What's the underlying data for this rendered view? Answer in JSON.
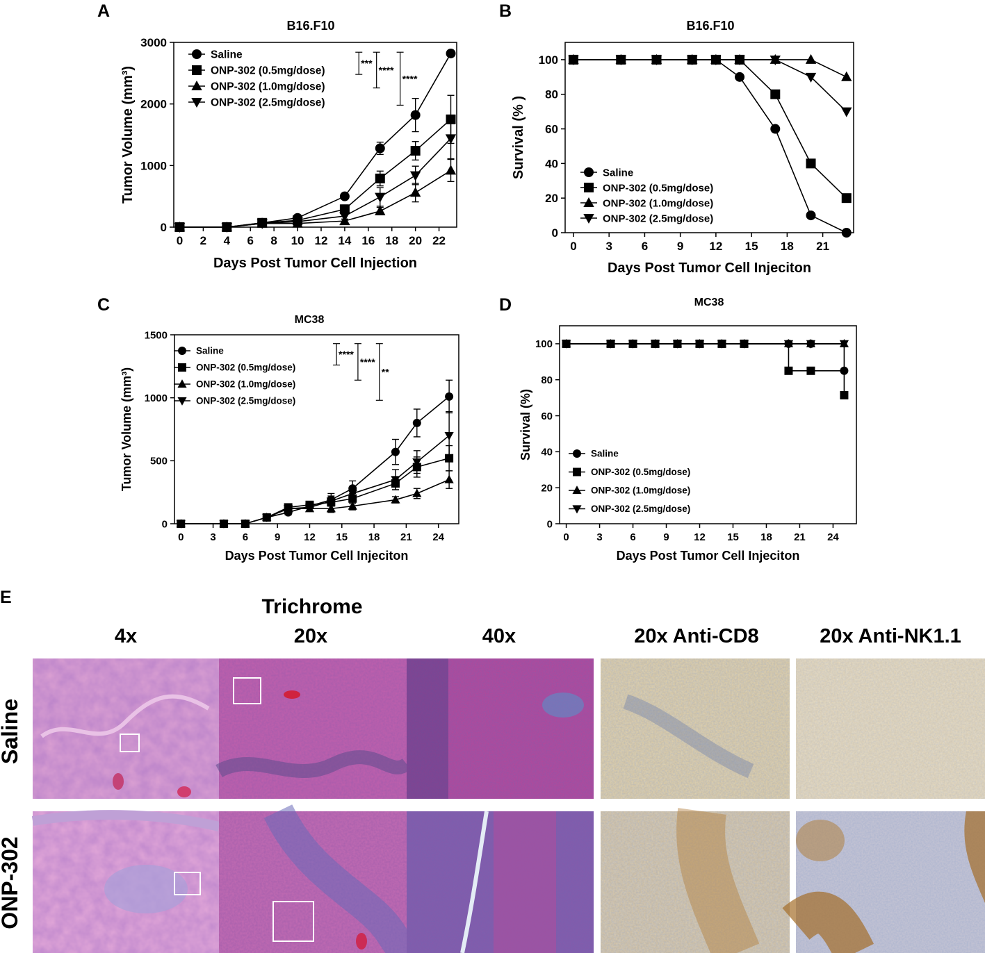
{
  "panel_letters": [
    "A",
    "B",
    "C",
    "D",
    "E"
  ],
  "legend_series": [
    "Saline",
    "ONP-302 (0.5mg/dose)",
    "ONP-302 (1.0mg/dose)",
    "ONP-302 (2.5mg/dose)"
  ],
  "marker_symbols": {
    "Saline": "circle",
    "ONP-302 (0.5mg/dose)": "square",
    "ONP-302 (1.0mg/dose)": "triangle-up",
    "ONP-302 (2.5mg/dose)": "triangle-down"
  },
  "chart_data": [
    {
      "panel": "A",
      "type": "line",
      "title": "B16.F10",
      "xlabel": "Days Post Tumor Cell Injection",
      "ylabel": "Tumor Volume (mm³)",
      "xlim": [
        -0.5,
        23.5
      ],
      "ylim": [
        0,
        3000
      ],
      "xticks": [
        0,
        2,
        4,
        6,
        8,
        10,
        12,
        14,
        16,
        18,
        20,
        22
      ],
      "yticks": [
        0,
        1000,
        2000,
        3000
      ],
      "legend_position": "top-left",
      "series": [
        {
          "name": "Saline",
          "marker": "circle",
          "x": [
            0,
            4,
            7,
            10,
            14,
            17,
            20,
            23
          ],
          "y": [
            0,
            0,
            70,
            150,
            500,
            1280,
            1820,
            2820
          ],
          "err": [
            0,
            0,
            20,
            30,
            40,
            100,
            270,
            0
          ]
        },
        {
          "name": "ONP-302 (0.5mg/dose)",
          "marker": "square",
          "x": [
            0,
            4,
            7,
            10,
            14,
            17,
            20,
            23
          ],
          "y": [
            0,
            0,
            70,
            110,
            290,
            790,
            1240,
            1750
          ],
          "err": [
            0,
            0,
            20,
            30,
            70,
            120,
            150,
            390
          ]
        },
        {
          "name": "ONP-302 (1.0mg/dose)",
          "marker": "triangle-up",
          "x": [
            0,
            4,
            7,
            10,
            14,
            17,
            20,
            23
          ],
          "y": [
            0,
            0,
            60,
            60,
            100,
            260,
            560,
            920
          ],
          "err": [
            0,
            0,
            20,
            20,
            30,
            60,
            150,
            180
          ]
        },
        {
          "name": "ONP-302 (2.5mg/dose)",
          "marker": "triangle-down",
          "x": [
            0,
            4,
            7,
            10,
            14,
            17,
            20,
            23
          ],
          "y": [
            0,
            0,
            60,
            90,
            180,
            490,
            840,
            1440
          ],
          "err": [
            0,
            0,
            20,
            30,
            50,
            150,
            150,
            330
          ]
        }
      ],
      "annotations": [
        {
          "label": "***",
          "x": 15.2,
          "y_top": 2840,
          "y_bottom": 2480
        },
        {
          "label": "****",
          "x": 16.7,
          "y_top": 2840,
          "y_bottom": 2260
        },
        {
          "label": "****",
          "x": 18.7,
          "y_top": 2840,
          "y_bottom": 1980
        }
      ]
    },
    {
      "panel": "B",
      "type": "line",
      "title": "B16.F10",
      "xlabel": "Days Post Tumor Cell Injeciton",
      "ylabel": "Survival (% )",
      "xlim": [
        -0.7,
        23.6
      ],
      "ylim": [
        0,
        110
      ],
      "xticks": [
        0,
        3,
        6,
        9,
        12,
        15,
        18,
        21
      ],
      "yticks": [
        0,
        20,
        40,
        60,
        80,
        100
      ],
      "legend_position": "bottom-left",
      "series": [
        {
          "name": "Saline",
          "marker": "circle",
          "x": [
            0,
            4,
            7,
            10,
            12,
            14,
            17,
            20,
            23
          ],
          "y": [
            100,
            100,
            100,
            100,
            100,
            90,
            60,
            10,
            0
          ]
        },
        {
          "name": "ONP-302 (0.5mg/dose)",
          "marker": "square",
          "x": [
            0,
            4,
            7,
            10,
            12,
            14,
            17,
            20,
            23
          ],
          "y": [
            100,
            100,
            100,
            100,
            100,
            100,
            80,
            40,
            20
          ]
        },
        {
          "name": "ONP-302 (1.0mg/dose)",
          "marker": "triangle-up",
          "x": [
            0,
            4,
            7,
            10,
            12,
            14,
            17,
            20,
            23
          ],
          "y": [
            100,
            100,
            100,
            100,
            100,
            100,
            100,
            100,
            90
          ]
        },
        {
          "name": "ONP-302 (2.5mg/dose)",
          "marker": "triangle-down",
          "x": [
            0,
            4,
            7,
            10,
            12,
            14,
            17,
            20,
            23
          ],
          "y": [
            100,
            100,
            100,
            100,
            100,
            100,
            100,
            90,
            70
          ]
        }
      ]
    },
    {
      "panel": "C",
      "type": "line",
      "title": "MC38",
      "xlabel": "Days Post Tumor Cell Injeciton",
      "ylabel": "Tumor Volume (mm³)",
      "xlim": [
        -0.6,
        25.9
      ],
      "ylim": [
        0,
        1500
      ],
      "xticks": [
        0,
        3,
        6,
        9,
        12,
        15,
        18,
        21,
        24
      ],
      "yticks": [
        0,
        500,
        1000,
        1500
      ],
      "legend_position": "top-left",
      "series": [
        {
          "name": "Saline",
          "marker": "circle",
          "x": [
            0,
            4,
            6,
            8,
            10,
            12,
            14,
            16,
            20,
            22,
            25
          ],
          "y": [
            0,
            0,
            0,
            50,
            90,
            140,
            190,
            280,
            570,
            800,
            1010
          ],
          "err": [
            0,
            0,
            0,
            15,
            20,
            20,
            50,
            60,
            100,
            110,
            130
          ]
        },
        {
          "name": "ONP-302 (0.5mg/dose)",
          "marker": "square",
          "x": [
            0,
            4,
            6,
            8,
            10,
            12,
            14,
            16,
            20,
            22,
            25
          ],
          "y": [
            0,
            0,
            0,
            50,
            130,
            150,
            170,
            200,
            320,
            450,
            520
          ],
          "err": [
            0,
            0,
            0,
            15,
            20,
            20,
            30,
            40,
            50,
            80,
            100
          ]
        },
        {
          "name": "ONP-302 (1.0mg/dose)",
          "marker": "triangle-up",
          "x": [
            0,
            4,
            6,
            8,
            10,
            12,
            14,
            16,
            20,
            22,
            25
          ],
          "y": [
            0,
            0,
            0,
            50,
            120,
            120,
            120,
            140,
            190,
            240,
            350
          ],
          "err": [
            0,
            0,
            0,
            15,
            20,
            20,
            30,
            30,
            25,
            40,
            70
          ]
        },
        {
          "name": "ONP-302 (2.5mg/dose)",
          "marker": "triangle-down",
          "x": [
            0,
            4,
            6,
            8,
            10,
            12,
            14,
            16,
            20,
            22,
            25
          ],
          "y": [
            0,
            0,
            0,
            50,
            120,
            130,
            180,
            240,
            350,
            490,
            700
          ],
          "err": [
            0,
            0,
            0,
            15,
            30,
            30,
            40,
            50,
            80,
            90,
            190
          ]
        }
      ],
      "annotations": [
        {
          "label": "****",
          "x": 14.5,
          "y_top": 1430,
          "y_bottom": 1260
        },
        {
          "label": "****",
          "x": 16.5,
          "y_top": 1430,
          "y_bottom": 1140
        },
        {
          "label": "**",
          "x": 18.5,
          "y_top": 1430,
          "y_bottom": 980
        }
      ]
    },
    {
      "panel": "D",
      "type": "line",
      "title": "MC38",
      "xlabel": "Days Post Tumor Cell Injeciton",
      "ylabel": "Survival (%)",
      "xlim": [
        -0.6,
        26.1
      ],
      "ylim": [
        0,
        110
      ],
      "xticks": [
        0,
        3,
        6,
        9,
        12,
        15,
        18,
        21,
        24
      ],
      "yticks": [
        0,
        20,
        40,
        60,
        80,
        100
      ],
      "legend_position": "bottom-left",
      "series": [
        {
          "name": "Saline",
          "marker": "circle",
          "step": true,
          "x": [
            0,
            4,
            6,
            8,
            10,
            12,
            14,
            16,
            20,
            22,
            25
          ],
          "y": [
            100,
            100,
            100,
            100,
            100,
            100,
            100,
            100,
            100,
            100,
            85
          ]
        },
        {
          "name": "ONP-302 (0.5mg/dose)",
          "marker": "square",
          "step": true,
          "x": [
            0,
            4,
            6,
            8,
            10,
            12,
            14,
            16,
            20,
            22,
            25
          ],
          "y": [
            100,
            100,
            100,
            100,
            100,
            100,
            100,
            100,
            85,
            85,
            71.4
          ]
        },
        {
          "name": "ONP-302 (1.0mg/dose)",
          "marker": "triangle-up",
          "step": true,
          "x": [
            0,
            4,
            6,
            8,
            10,
            12,
            14,
            16,
            20,
            22,
            25
          ],
          "y": [
            100,
            100,
            100,
            100,
            100,
            100,
            100,
            100,
            100,
            100,
            100
          ]
        },
        {
          "name": "ONP-302 (2.5mg/dose)",
          "marker": "triangle-down",
          "step": true,
          "x": [
            0,
            4,
            6,
            8,
            10,
            12,
            14,
            16,
            20,
            22,
            25
          ],
          "y": [
            100,
            100,
            100,
            100,
            100,
            100,
            100,
            100,
            100,
            100,
            100
          ]
        }
      ]
    }
  ],
  "histology": {
    "panel": "E",
    "group_label": "Trichrome",
    "columns": [
      "4x",
      "20x",
      "40x",
      "20x Anti-CD8",
      "20x Anti-NK1.1"
    ],
    "rows": [
      "Saline",
      "ONP-302"
    ],
    "stain_colors": {
      "trichrome_pink": "#d889c6",
      "trichrome_magenta": "#b04a9c",
      "trichrome_blue": "#6f63b6",
      "ihc_background": "#e4d7b4",
      "ihc_brown": "#a8742f",
      "ihc_nuclei": "#7d8cb3"
    }
  }
}
